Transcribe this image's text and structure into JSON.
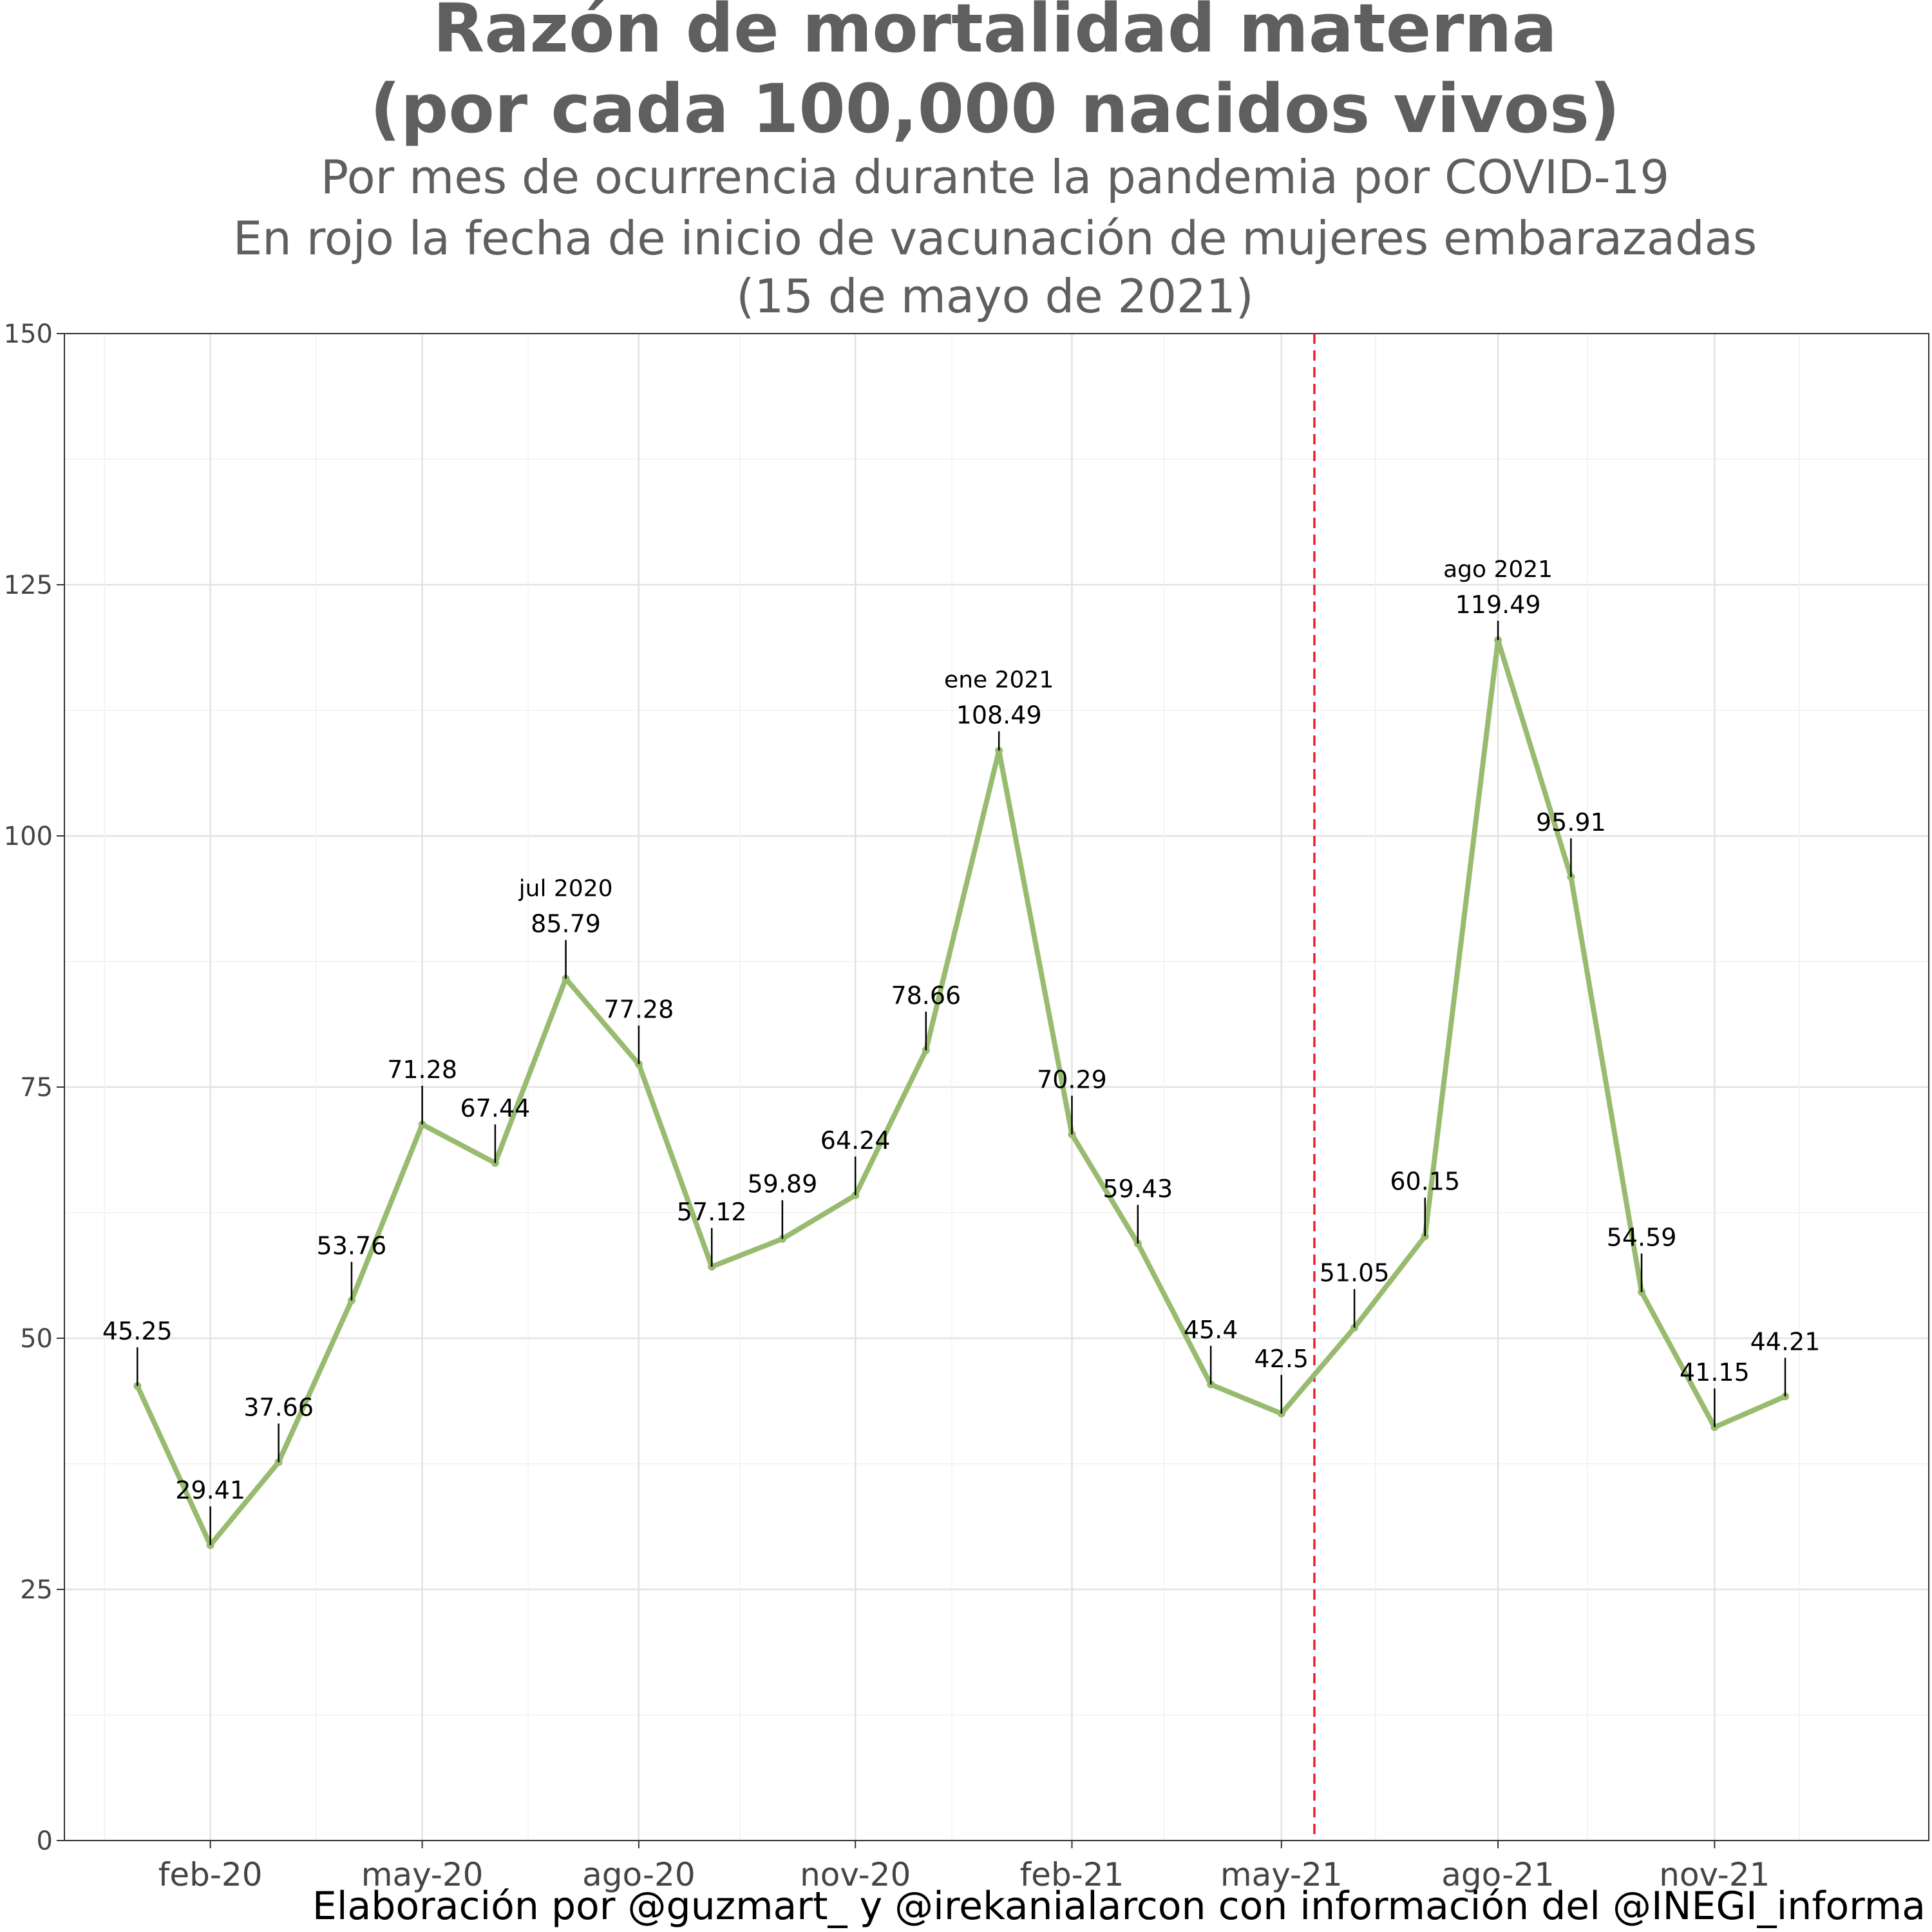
{
  "chart_data": {
    "type": "line",
    "title_lines": [
      "Razón de mortalidad materna",
      "(por cada 100,000 nacidos vivos)"
    ],
    "subtitle_lines": [
      "Por mes de ocurrencia durante la pandemia por COVID-19",
      "En rojo la fecha de inicio de vacunación de mujeres embarazadas",
      "(15 de mayo de 2021)"
    ],
    "caption": "Elaboración por @guzmart_ y @irekanialarcon con información del @INEGI_informa",
    "xlabel": "",
    "ylabel": "",
    "ylim": [
      0,
      150
    ],
    "y_ticks": [
      0,
      25,
      50,
      75,
      100,
      125,
      150
    ],
    "y_tick_labels": [
      "0",
      "25",
      "50",
      "75",
      "100",
      "125",
      "150"
    ],
    "x_range": [
      "2019-12-01",
      "2022-01-31"
    ],
    "x_ticks": [
      {
        "date": "2020-02-01",
        "label": "feb-20"
      },
      {
        "date": "2020-05-01",
        "label": "may-20"
      },
      {
        "date": "2020-08-01",
        "label": "ago-20"
      },
      {
        "date": "2020-11-01",
        "label": "nov-20"
      },
      {
        "date": "2021-02-01",
        "label": "feb-21"
      },
      {
        "date": "2021-05-01",
        "label": "may-21"
      },
      {
        "date": "2021-08-01",
        "label": "ago-21"
      },
      {
        "date": "2021-11-01",
        "label": "nov-21"
      }
    ],
    "grid": true,
    "series": [
      {
        "color": "#98bb6f",
        "points": [
          {
            "x": "2020-01-01",
            "y": 45.25,
            "label": "45.25"
          },
          {
            "x": "2020-02-01",
            "y": 29.41,
            "label": "29.41"
          },
          {
            "x": "2020-03-01",
            "y": 37.66,
            "label": "37.66"
          },
          {
            "x": "2020-04-01",
            "y": 53.76,
            "label": "53.76"
          },
          {
            "x": "2020-05-01",
            "y": 71.28,
            "label": "71.28"
          },
          {
            "x": "2020-06-01",
            "y": 67.44,
            "label": "67.44"
          },
          {
            "x": "2020-07-01",
            "y": 85.79,
            "label": "85.79",
            "note": "jul 2020"
          },
          {
            "x": "2020-08-01",
            "y": 77.28,
            "label": "77.28"
          },
          {
            "x": "2020-09-01",
            "y": 57.12,
            "label": "57.12"
          },
          {
            "x": "2020-10-01",
            "y": 59.89,
            "label": "59.89"
          },
          {
            "x": "2020-11-01",
            "y": 64.24,
            "label": "64.24"
          },
          {
            "x": "2020-12-01",
            "y": 78.66,
            "label": "78.66"
          },
          {
            "x": "2021-01-01",
            "y": 108.49,
            "label": "108.49",
            "note": "ene 2021"
          },
          {
            "x": "2021-02-01",
            "y": 70.29,
            "label": "70.29"
          },
          {
            "x": "2021-03-01",
            "y": 59.43,
            "label": "59.43"
          },
          {
            "x": "2021-04-01",
            "y": 45.4,
            "label": "45.4"
          },
          {
            "x": "2021-05-01",
            "y": 42.5,
            "label": "42.5"
          },
          {
            "x": "2021-06-01",
            "y": 51.05,
            "label": "51.05"
          },
          {
            "x": "2021-07-01",
            "y": 60.15,
            "label": "60.15"
          },
          {
            "x": "2021-08-01",
            "y": 119.49,
            "label": "119.49",
            "note": "ago 2021"
          },
          {
            "x": "2021-09-01",
            "y": 95.91,
            "label": "95.91"
          },
          {
            "x": "2021-10-01",
            "y": 54.59,
            "label": "54.59"
          },
          {
            "x": "2021-11-01",
            "y": 41.15,
            "label": "41.15"
          },
          {
            "x": "2021-12-01",
            "y": 44.21,
            "label": "44.21"
          }
        ]
      }
    ],
    "reference_line": {
      "x": "2021-05-15",
      "color": "#e8202a",
      "style": "dashed"
    }
  }
}
